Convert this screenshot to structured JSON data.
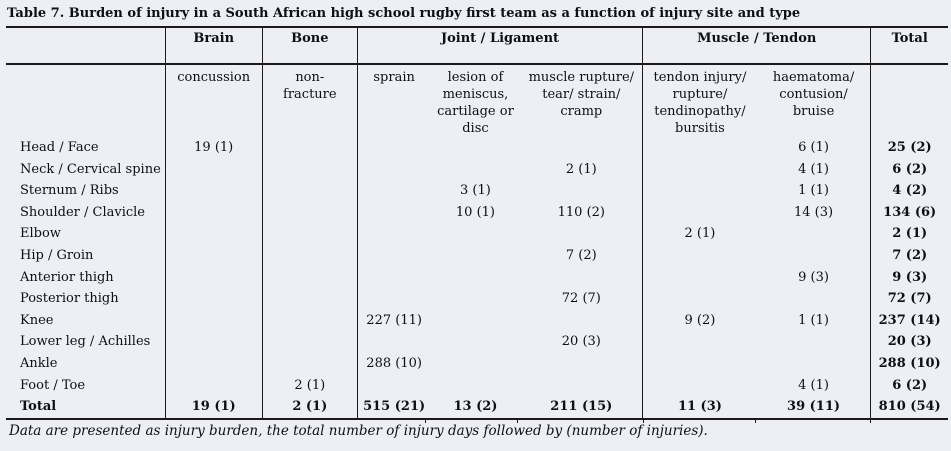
{
  "title": "Table 7. Burden of injury in a South African high school rugby first team as a function of injury site and type",
  "colors": {
    "background": "#edeff5",
    "text": "#0e0e16",
    "rule_line": "#1a1a1a"
  },
  "table": {
    "group_headers": {
      "brain": "Brain",
      "bone": "Bone",
      "joint": "Joint / Ligament",
      "muscle": "Muscle / Tendon",
      "total": "Total"
    },
    "sub_headers": {
      "brain": "concussion",
      "bone": "non-fracture",
      "sprain": "sprain",
      "lesion": "lesion of meniscus, cartilage or disc",
      "muscle_rupture": "muscle rupture/ tear/ strain/ cramp",
      "tendon": "tendon injury/ rupture/ tendinopathy/ bursitis",
      "haematoma": "haematoma/ contusion/ bruise"
    },
    "rows": [
      {
        "label": "Head / Face",
        "brain": "19 (1)",
        "bone": "",
        "sprain": "",
        "lesion": "",
        "muscle_rupture": "",
        "tendon": "",
        "haematoma": "6 (1)",
        "total": "25 (2)"
      },
      {
        "label": "Neck / Cervical spine",
        "brain": "",
        "bone": "",
        "sprain": "",
        "lesion": "",
        "muscle_rupture": "2 (1)",
        "tendon": "",
        "haematoma": "4 (1)",
        "total": "6 (2)"
      },
      {
        "label": "Sternum / Ribs",
        "brain": "",
        "bone": "",
        "sprain": "",
        "lesion": "3 (1)",
        "muscle_rupture": "",
        "tendon": "",
        "haematoma": "1 (1)",
        "total": "4 (2)"
      },
      {
        "label": "Shoulder / Clavicle",
        "brain": "",
        "bone": "",
        "sprain": "",
        "lesion": "10 (1)",
        "muscle_rupture": "110 (2)",
        "tendon": "",
        "haematoma": "14 (3)",
        "total": "134 (6)"
      },
      {
        "label": "Elbow",
        "brain": "",
        "bone": "",
        "sprain": "",
        "lesion": "",
        "muscle_rupture": "",
        "tendon": "2 (1)",
        "haematoma": "",
        "total": "2 (1)"
      },
      {
        "label": "Hip / Groin",
        "brain": "",
        "bone": "",
        "sprain": "",
        "lesion": "",
        "muscle_rupture": "7 (2)",
        "tendon": "",
        "haematoma": "",
        "total": "7 (2)"
      },
      {
        "label": "Anterior thigh",
        "brain": "",
        "bone": "",
        "sprain": "",
        "lesion": "",
        "muscle_rupture": "",
        "tendon": "",
        "haematoma": "9 (3)",
        "total": "9 (3)"
      },
      {
        "label": "Posterior thigh",
        "brain": "",
        "bone": "",
        "sprain": "",
        "lesion": "",
        "muscle_rupture": "72 (7)",
        "tendon": "",
        "haematoma": "",
        "total": "72 (7)"
      },
      {
        "label": "Knee",
        "brain": "",
        "bone": "",
        "sprain": "227 (11)",
        "lesion": "",
        "muscle_rupture": "",
        "tendon": "9 (2)",
        "haematoma": "1 (1)",
        "total": "237 (14)"
      },
      {
        "label": "Lower leg / Achilles",
        "brain": "",
        "bone": "",
        "sprain": "",
        "lesion": "",
        "muscle_rupture": "20 (3)",
        "tendon": "",
        "haematoma": "",
        "total": "20 (3)"
      },
      {
        "label": "Ankle",
        "brain": "",
        "bone": "",
        "sprain": "288 (10)",
        "lesion": "",
        "muscle_rupture": "",
        "tendon": "",
        "haematoma": "",
        "total": "288 (10)"
      },
      {
        "label": "Foot / Toe",
        "brain": "",
        "bone": "2 (1)",
        "sprain": "",
        "lesion": "",
        "muscle_rupture": "",
        "tendon": "",
        "haematoma": "4 (1)",
        "total": "6 (2)"
      },
      {
        "label": "Total",
        "is_total": true,
        "brain": "19 (1)",
        "bone": "2 (1)",
        "sprain": "515 (21)",
        "lesion": "13 (2)",
        "muscle_rupture": "211 (15)",
        "tendon": "11 (3)",
        "haematoma": "39 (11)",
        "total": "810 (54)"
      }
    ]
  },
  "footnote": "Data are presented as injury burden, the total number of injury days followed by (number of injuries)."
}
